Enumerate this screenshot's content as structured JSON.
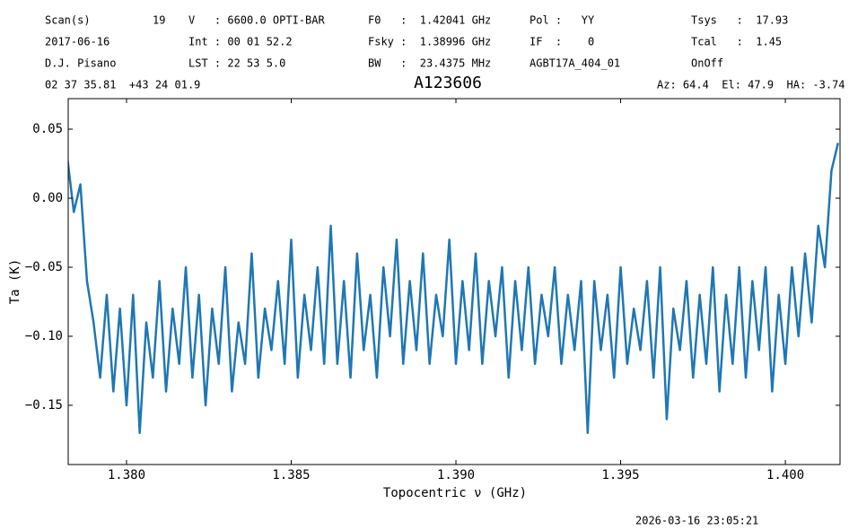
{
  "header": {
    "rows": [
      [
        "Scan(s)",
        "19",
        "V   : 6600.0 OPTI-BAR",
        "F0   :  1.42041 GHz",
        "Pol :   YY",
        "Tsys   :  17.93"
      ],
      [
        "2017-06-16",
        "Int : 00 01 52.2",
        "Fsky :  1.38996 GHz",
        "IF  :    0",
        "Tcal   :  1.45"
      ],
      [
        "D.J. Pisano",
        "LST : 22 53 5.0",
        "BW   :  23.4375 MHz",
        "AGBT17A_404_01",
        "OnOff"
      ],
      [
        "02 37 35.81  +43 24 01.9",
        "Az: 64.4  El: 47.9  HA: -3.74"
      ]
    ],
    "timestamp": "2026-03-16 23:05:21"
  },
  "chart_data": {
    "type": "line",
    "title": "A123606",
    "xlabel": "Topocentric ν (GHz)",
    "ylabel": "Ta (K)",
    "x": [
      1.3782,
      1.3784,
      1.3786,
      1.3788,
      1.379,
      1.3792,
      1.3794,
      1.3796,
      1.3798,
      1.38,
      1.3802,
      1.3804,
      1.3806,
      1.3808,
      1.381,
      1.3812,
      1.3814,
      1.3816,
      1.3818,
      1.382,
      1.3822,
      1.3824,
      1.3826,
      1.3828,
      1.383,
      1.3832,
      1.3834,
      1.3836,
      1.3838,
      1.384,
      1.3842,
      1.3844,
      1.3846,
      1.3848,
      1.385,
      1.3852,
      1.3854,
      1.3856,
      1.3858,
      1.386,
      1.3862,
      1.3864,
      1.3866,
      1.3868,
      1.387,
      1.3872,
      1.3874,
      1.3876,
      1.3878,
      1.388,
      1.3882,
      1.3884,
      1.3886,
      1.3888,
      1.389,
      1.3892,
      1.3894,
      1.3896,
      1.3898,
      1.39,
      1.3902,
      1.3904,
      1.3906,
      1.3908,
      1.391,
      1.3912,
      1.3914,
      1.3916,
      1.3918,
      1.392,
      1.3922,
      1.3924,
      1.3926,
      1.3928,
      1.393,
      1.3932,
      1.3934,
      1.3936,
      1.3938,
      1.394,
      1.3942,
      1.3944,
      1.3946,
      1.3948,
      1.395,
      1.3952,
      1.3954,
      1.3956,
      1.3958,
      1.396,
      1.3962,
      1.3964,
      1.3966,
      1.3968,
      1.397,
      1.3972,
      1.3974,
      1.3976,
      1.3978,
      1.398,
      1.3982,
      1.3984,
      1.3986,
      1.3988,
      1.399,
      1.3992,
      1.3994,
      1.3996,
      1.3998,
      1.4,
      1.4002,
      1.4004,
      1.4006,
      1.4008,
      1.401,
      1.4012,
      1.4014,
      1.4016
    ],
    "series": [
      {
        "name": "Ta",
        "color": "#1f77b4",
        "values": [
          0.03,
          -0.01,
          0.01,
          -0.06,
          -0.09,
          -0.13,
          -0.07,
          -0.14,
          -0.08,
          -0.15,
          -0.07,
          -0.17,
          -0.09,
          -0.13,
          -0.06,
          -0.14,
          -0.08,
          -0.12,
          -0.05,
          -0.13,
          -0.07,
          -0.15,
          -0.08,
          -0.12,
          -0.05,
          -0.14,
          -0.09,
          -0.12,
          -0.04,
          -0.13,
          -0.08,
          -0.11,
          -0.06,
          -0.12,
          -0.03,
          -0.13,
          -0.07,
          -0.11,
          -0.05,
          -0.12,
          -0.02,
          -0.12,
          -0.06,
          -0.13,
          -0.04,
          -0.11,
          -0.07,
          -0.13,
          -0.05,
          -0.1,
          -0.03,
          -0.12,
          -0.06,
          -0.11,
          -0.04,
          -0.12,
          -0.07,
          -0.1,
          -0.03,
          -0.12,
          -0.06,
          -0.11,
          -0.04,
          -0.12,
          -0.06,
          -0.1,
          -0.05,
          -0.13,
          -0.06,
          -0.11,
          -0.05,
          -0.12,
          -0.07,
          -0.1,
          -0.05,
          -0.12,
          -0.07,
          -0.11,
          -0.06,
          -0.17,
          -0.06,
          -0.11,
          -0.07,
          -0.13,
          -0.05,
          -0.12,
          -0.08,
          -0.11,
          -0.06,
          -0.13,
          -0.05,
          -0.16,
          -0.08,
          -0.11,
          -0.06,
          -0.13,
          -0.07,
          -0.12,
          -0.05,
          -0.14,
          -0.07,
          -0.12,
          -0.05,
          -0.13,
          -0.06,
          -0.11,
          -0.05,
          -0.14,
          -0.07,
          -0.12,
          -0.05,
          -0.1,
          -0.04,
          -0.09,
          -0.02,
          -0.05,
          0.02,
          0.04
        ]
      }
    ],
    "xlim": [
      1.37823,
      1.40166
    ],
    "ylim": [
      -0.1929,
      0.0721
    ],
    "xticks": [
      {
        "value": 1.38,
        "label": "1.380"
      },
      {
        "value": 1.385,
        "label": "1.385"
      },
      {
        "value": 1.39,
        "label": "1.390"
      },
      {
        "value": 1.395,
        "label": "1.395"
      },
      {
        "value": 1.4,
        "label": "1.400"
      }
    ],
    "yticks": [
      {
        "value": 0.05,
        "label": "0.05"
      },
      {
        "value": 0,
        "label": "0.00"
      },
      {
        "value": -0.05,
        "label": "−0.05"
      },
      {
        "value": -0.1,
        "label": "−0.10"
      },
      {
        "value": -0.15,
        "label": "−0.15"
      }
    ]
  }
}
